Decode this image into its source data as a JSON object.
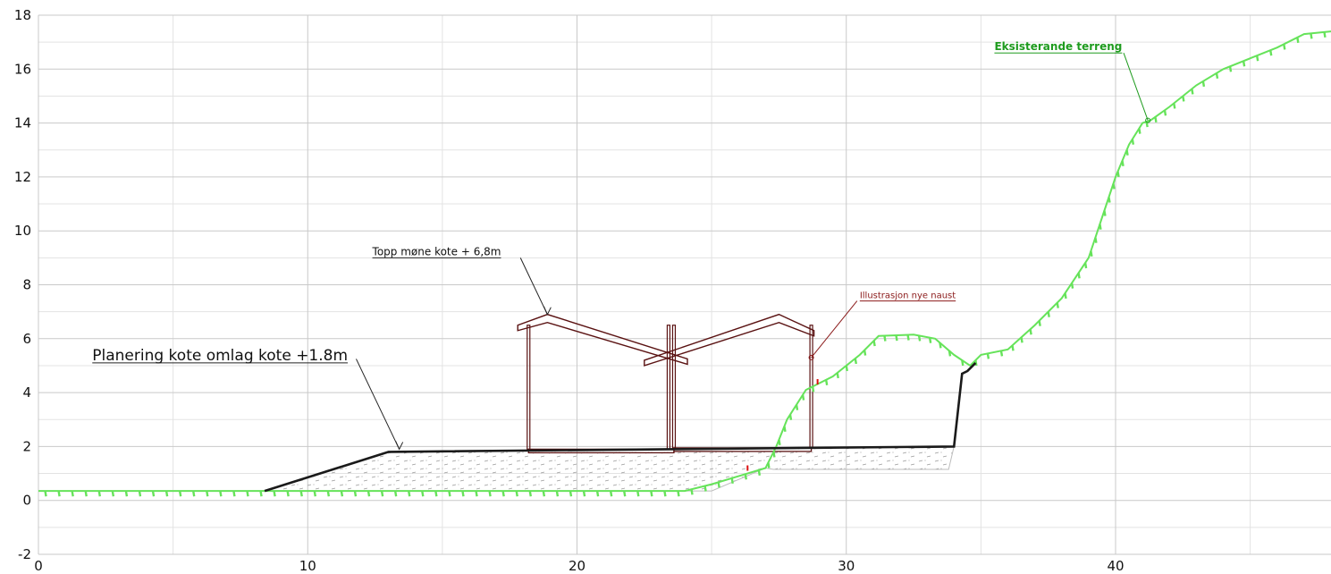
{
  "chart_data": {
    "type": "line",
    "title": "",
    "xlabel": "",
    "ylabel": "",
    "xlim": [
      0,
      48
    ],
    "ylim": [
      -2,
      18
    ],
    "x_ticks": [
      0,
      10,
      20,
      30,
      40
    ],
    "y_ticks": [
      -2,
      0,
      2,
      4,
      6,
      8,
      10,
      12,
      14,
      16,
      18
    ],
    "grid": true,
    "series": [
      {
        "name": "Eksisterande terreng",
        "color": "#66e35a",
        "x": [
          0,
          24,
          25,
          26,
          27,
          27.4,
          27.8,
          28.5,
          29.5,
          30.5,
          31.2,
          32.5,
          33.3,
          34,
          34.6,
          35,
          36,
          37,
          38,
          39,
          39.5,
          40,
          40.5,
          41,
          41.3,
          42,
          43,
          44,
          45,
          46,
          47,
          48
        ],
        "y": [
          0.35,
          0.35,
          0.6,
          0.9,
          1.2,
          2.0,
          3.0,
          4.1,
          4.6,
          5.4,
          6.1,
          6.15,
          6.0,
          5.4,
          5.0,
          5.4,
          5.6,
          6.5,
          7.5,
          9.0,
          10.5,
          12.0,
          13.2,
          14.0,
          14.1,
          14.6,
          15.4,
          16.0,
          16.4,
          16.8,
          17.3,
          17.4
        ]
      },
      {
        "name": "",
        "color": "#1a1a1a",
        "x": [
          8.4,
          13,
          34,
          34.3,
          34.5,
          34.8
        ],
        "y": [
          0.35,
          1.8,
          2.0,
          4.7,
          4.8,
          5.1
        ]
      }
    ],
    "fill_region": {
      "x": [
        8.4,
        13,
        34,
        33.8,
        27.3,
        27,
        25,
        24,
        8.4
      ],
      "y": [
        0.35,
        1.8,
        2.0,
        1.15,
        1.15,
        1.2,
        0.35,
        0.35,
        0.35
      ]
    },
    "naust": [
      {
        "floor": [
          18.2,
          23.6
        ],
        "floor_y": 1.9,
        "posts": [
          18.2,
          23.4
        ],
        "roof": [
          [
            17.8,
            6.3
          ],
          [
            17.8,
            6.5
          ],
          [
            18.9,
            6.9
          ],
          [
            24.1,
            5.25
          ],
          [
            24.1,
            5.05
          ],
          [
            18.9,
            6.6
          ],
          [
            17.8,
            6.3
          ]
        ]
      },
      {
        "floor": [
          23.6,
          28.7
        ],
        "floor_y": 1.95,
        "posts": [
          23.6,
          28.7
        ],
        "roof": [
          [
            22.5,
            5.0
          ],
          [
            22.5,
            5.2
          ],
          [
            27.5,
            6.9
          ],
          [
            28.8,
            6.3
          ],
          [
            28.8,
            6.1
          ],
          [
            27.5,
            6.6
          ],
          [
            22.5,
            5.0
          ]
        ]
      }
    ],
    "annotations": [
      {
        "text": "Planering kote omlag kote +1.8m",
        "style": "big",
        "tx": 2,
        "ty": 5.1,
        "lx": [
          11.8,
          13.4
        ],
        "ly": [
          5.25,
          1.9
        ]
      },
      {
        "text": "Topp møne kote + 6,8m",
        "style": "mid",
        "tx": 12.4,
        "ty": 9.0,
        "lx": [
          17.9,
          18.9
        ],
        "ly": [
          9.0,
          6.9
        ]
      },
      {
        "text": "Illustrasjon nye naust",
        "style": "red",
        "tx": 30.5,
        "ty": 7.4,
        "lx": [
          30.4,
          28.7
        ],
        "ly": [
          7.4,
          5.3
        ]
      },
      {
        "text": "Eksisterande terreng",
        "style": "green",
        "tx": 35.5,
        "ty": 16.6,
        "lx": [
          40.3,
          41.2
        ],
        "ly": [
          16.6,
          14.1
        ]
      }
    ]
  }
}
